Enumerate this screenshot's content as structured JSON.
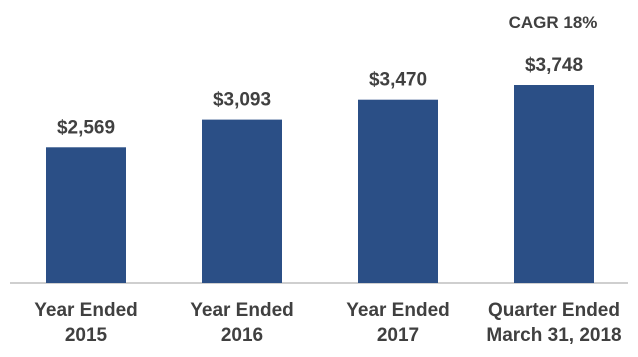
{
  "chart_data": {
    "type": "bar",
    "categories": [
      [
        "Year Ended",
        "2015"
      ],
      [
        "Year Ended",
        "2016"
      ],
      [
        "Year Ended",
        "2017"
      ],
      [
        "Quarter Ended",
        "March 31, 2018"
      ]
    ],
    "values": [
      2569,
      3093,
      3470,
      3748
    ],
    "value_labels": [
      "$2,569",
      "$3,093",
      "$3,470",
      "$3,748"
    ],
    "annotation": "CAGR 18%",
    "bar_color": "#2b4f86",
    "axis_color": "#bfbfbf",
    "text_color": "#404040",
    "ylim": [
      0,
      4600
    ],
    "grid": false,
    "legend": "none"
  }
}
